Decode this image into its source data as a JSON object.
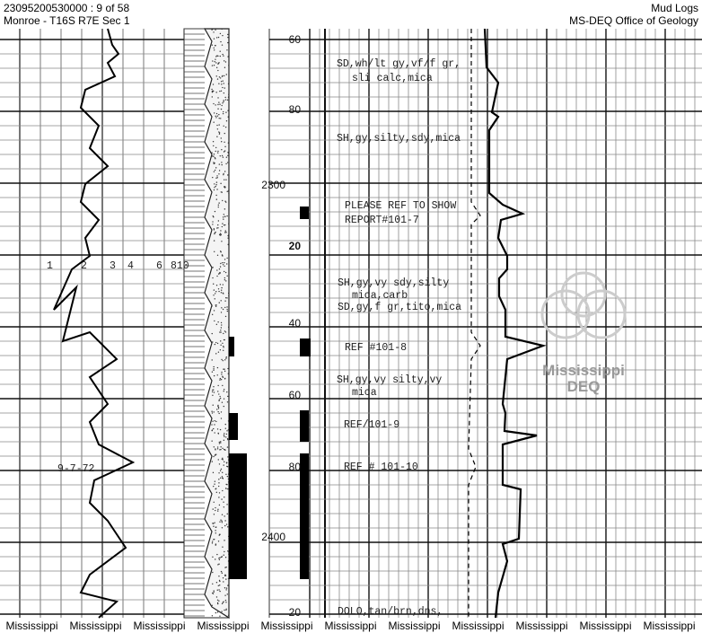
{
  "header": {
    "document_id": "23095200530000 : 9 of 58",
    "location": "Monroe - T16S R7E Sec 1",
    "log_type": "Mud Logs",
    "agency": "MS-DEQ Office of Geology"
  },
  "scale_labels": [
    "1",
    "2",
    "3",
    "4",
    "6",
    "810"
  ],
  "date_annotation": "9-7-72",
  "depth_labels": [
    "60",
    "80",
    "2300",
    "20",
    "40",
    "60",
    "80",
    "2400",
    "20"
  ],
  "descriptions": [
    "SD,wh/lt gy,vf/f gr,",
    "sli calc,mica",
    "SH,gy,silty,sdy,mica",
    "PLEASE REF TO SHOW",
    "REPORT#101-7",
    "SH,gy,vy sdy,silty",
    "mica,carb",
    "SD,gy,f gr,tito,mica",
    "REF #101-8",
    "SH,gy,vy silty,vy",
    "mica",
    "REF/101-9",
    "REF # 101-10",
    "DOLO,tan/brn,dns,"
  ],
  "watermark": {
    "line1": "Mississippi",
    "line2": "DEQ"
  },
  "footer": [
    "Mississippi",
    "Mississippi",
    "Mississippi",
    "Mississippi",
    "Mississippi",
    "Mississippi",
    "Mississippi",
    "Mississippi",
    "Mississippi",
    "Mississippi",
    "Mississippi"
  ]
}
